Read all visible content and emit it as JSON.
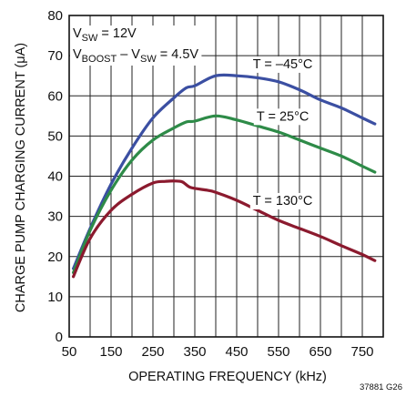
{
  "chart_data": {
    "type": "line",
    "xlabel": "OPERATING FREQUENCY (kHz)",
    "ylabel": "CHARGE PUMP CHARGING CURRENT (μA)",
    "xlim": [
      50,
      800
    ],
    "ylim": [
      0,
      80
    ],
    "x_ticks": [
      "50",
      "150",
      "250",
      "350",
      "450",
      "550",
      "650",
      "750"
    ],
    "y_ticks": [
      "0",
      "10",
      "20",
      "30",
      "40",
      "50",
      "60",
      "70",
      "80"
    ],
    "grid": true,
    "conditions": {
      "line1_main": "V",
      "line1_sub": "SW",
      "line1_rest": " = 12V",
      "line2_main": "V",
      "line2_sub": "BOOST",
      "line2_mid": " – V",
      "line2_sub2": "SW",
      "line2_rest": " = 4.5V"
    },
    "series": [
      {
        "name": "T = –45°C",
        "color": "#3b4fa2",
        "x": [
          60,
          100,
          150,
          200,
          250,
          300,
          330,
          350,
          400,
          450,
          500,
          550,
          600,
          650,
          700,
          750,
          780
        ],
        "y": [
          17,
          27,
          38,
          47,
          54.5,
          59.5,
          62,
          62.5,
          65,
          65,
          64.5,
          63.5,
          61.5,
          59,
          57,
          54.5,
          53
        ]
      },
      {
        "name": "T = 25°C",
        "color": "#2e8b48",
        "x": [
          60,
          100,
          150,
          200,
          250,
          300,
          330,
          350,
          400,
          450,
          500,
          550,
          600,
          650,
          700,
          750,
          780
        ],
        "y": [
          16,
          26.5,
          36.5,
          44,
          49,
          52,
          53.5,
          53.7,
          55,
          54,
          52.5,
          51,
          49,
          47,
          45,
          42.5,
          41
        ]
      },
      {
        "name": "T = 130°C",
        "color": "#8b1a2e",
        "x": [
          60,
          100,
          150,
          200,
          250,
          280,
          300,
          320,
          340,
          380,
          400,
          450,
          500,
          550,
          600,
          650,
          700,
          750,
          780
        ],
        "y": [
          15,
          24.5,
          31.5,
          35.5,
          38.3,
          38.7,
          38.8,
          38.6,
          37.2,
          36.5,
          36,
          34,
          31.5,
          29,
          27,
          25,
          22.7,
          20.5,
          19
        ]
      }
    ],
    "series_labels": [
      {
        "text": "T = –45°C",
        "x": 560,
        "y": 68
      },
      {
        "text": "T = 25°C",
        "x": 560,
        "y": 55
      },
      {
        "text": "T = 130°C",
        "x": 560,
        "y": 34
      }
    ],
    "figure_id": "37881 G26"
  }
}
